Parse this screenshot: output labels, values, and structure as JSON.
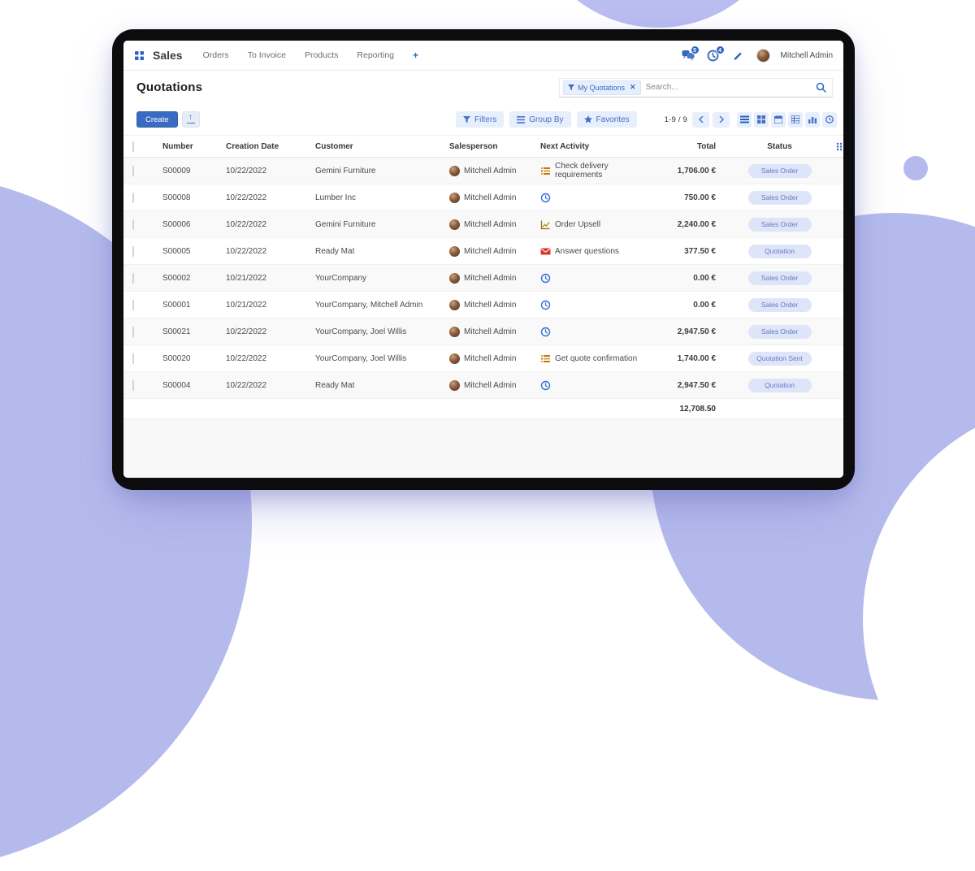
{
  "nav": {
    "app_name": "Sales",
    "menus": [
      "Orders",
      "To Invoice",
      "Products",
      "Reporting"
    ],
    "plus": "+",
    "messages_badge": "5",
    "activities_badge": "4",
    "user_name": "Mitchell Admin"
  },
  "header": {
    "title": "Quotations",
    "facet_label": "My Quotations",
    "search_placeholder": "Search..."
  },
  "toolbar": {
    "create_label": "Create",
    "filters_label": "Filters",
    "group_by_label": "Group By",
    "favorites_label": "Favorites",
    "pager": "1-9 / 9"
  },
  "table": {
    "columns": [
      "Number",
      "Creation Date",
      "Customer",
      "Salesperson",
      "Next Activity",
      "Total",
      "Status"
    ],
    "rows": [
      {
        "number": "S00009",
        "date": "10/22/2022",
        "customer": "Gemini Furniture",
        "salesperson": "Mitchell Admin",
        "activity": {
          "type": "tasks",
          "label": "Check delivery requirements"
        },
        "total": "1,706.00 €",
        "status": "Sales Order"
      },
      {
        "number": "S00008",
        "date": "10/22/2022",
        "customer": "Lumber Inc",
        "salesperson": "Mitchell Admin",
        "activity": {
          "type": "clock",
          "label": ""
        },
        "total": "750.00 €",
        "status": "Sales Order"
      },
      {
        "number": "S00006",
        "date": "10/22/2022",
        "customer": "Gemini Furniture",
        "salesperson": "Mitchell Admin",
        "activity": {
          "type": "chart",
          "label": "Order Upsell"
        },
        "total": "2,240.00 €",
        "status": "Sales Order"
      },
      {
        "number": "S00005",
        "date": "10/22/2022",
        "customer": "Ready Mat",
        "salesperson": "Mitchell Admin",
        "activity": {
          "type": "mail",
          "label": "Answer questions"
        },
        "total": "377.50 €",
        "status": "Quotation"
      },
      {
        "number": "S00002",
        "date": "10/21/2022",
        "customer": "YourCompany",
        "salesperson": "Mitchell Admin",
        "activity": {
          "type": "clock",
          "label": ""
        },
        "total": "0.00 €",
        "status": "Sales Order"
      },
      {
        "number": "S00001",
        "date": "10/21/2022",
        "customer": "YourCompany, Mitchell Admin",
        "salesperson": "Mitchell Admin",
        "activity": {
          "type": "clock",
          "label": ""
        },
        "total": "0.00 €",
        "status": "Sales Order"
      },
      {
        "number": "S00021",
        "date": "10/22/2022",
        "customer": "YourCompany, Joel Willis",
        "salesperson": "Mitchell Admin",
        "activity": {
          "type": "clock",
          "label": ""
        },
        "total": "2,947.50 €",
        "status": "Sales Order"
      },
      {
        "number": "S00020",
        "date": "10/22/2022",
        "customer": "YourCompany, Joel Willis",
        "salesperson": "Mitchell Admin",
        "activity": {
          "type": "tasks",
          "label": "Get quote confirmation"
        },
        "total": "1,740.00 €",
        "status": "Quotation Sent"
      },
      {
        "number": "S00004",
        "date": "10/22/2022",
        "customer": "Ready Mat",
        "salesperson": "Mitchell Admin",
        "activity": {
          "type": "clock",
          "label": ""
        },
        "total": "2,947.50 €",
        "status": "Quotation"
      }
    ],
    "footer_total": "12,708.50"
  },
  "colors": {
    "accent_blue": "#2b63c8",
    "blob_lavender": "#b5baec",
    "status_pill_bg": "#dfe5f9",
    "status_pill_text": "#6478c4",
    "activity_tasks": "#c79a1e",
    "activity_mail": "#d8382a",
    "activity_clock": "#2f6fd6"
  }
}
